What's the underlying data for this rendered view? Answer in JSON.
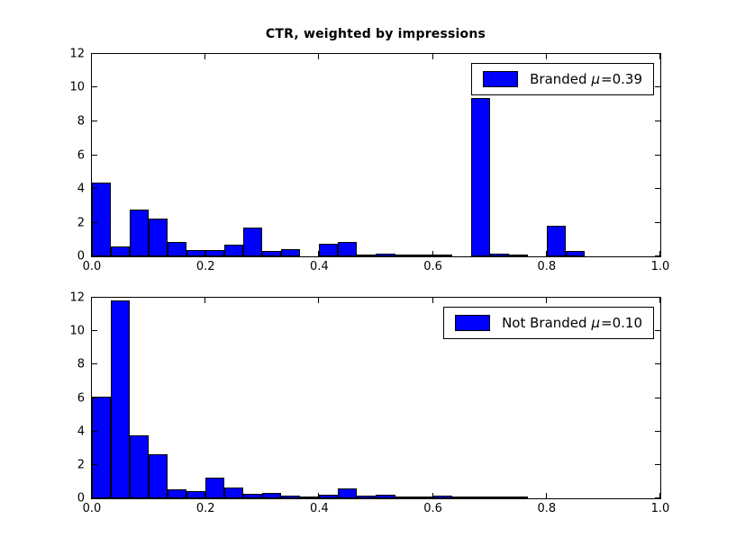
{
  "title": "CTR, weighted by impressions",
  "colors": {
    "bar_fill": "#0000ff",
    "bar_edge": "#000000",
    "axis": "#000000",
    "legend_background": "#ffffff",
    "legend_border": "#000000",
    "figure_background": "#ffffff"
  },
  "chart_data": [
    {
      "type": "bar",
      "subtype": "histogram",
      "series_name": "Branded",
      "legend": {
        "name": "Branded",
        "mu": "μ",
        "value": "=0.39",
        "position": "upper right"
      },
      "x_start": 0.0,
      "bin_width": 0.033333,
      "bins": 30,
      "values": [
        4.4,
        0.6,
        2.75,
        2.25,
        0.85,
        0.4,
        0.4,
        0.7,
        1.7,
        0.3,
        0.45,
        0,
        0.75,
        0.85,
        0.12,
        0.15,
        0.07,
        0.03,
        0.05,
        0,
        9.4,
        0.15,
        0.07,
        0,
        1.8,
        0.3,
        0,
        0,
        0,
        0
      ],
      "xlim": [
        0.0,
        1.0
      ],
      "ylim": [
        0,
        12
      ],
      "xtick_labels": [
        "0.0",
        "0.2",
        "0.4",
        "0.6",
        "0.8",
        "1.0"
      ],
      "ytick_labels": [
        "0",
        "2",
        "4",
        "6",
        "8",
        "10",
        "12"
      ],
      "grid": false
    },
    {
      "type": "bar",
      "subtype": "histogram",
      "series_name": "Not Branded",
      "legend": {
        "name": "Not Branded",
        "mu": "μ",
        "value": "=0.10",
        "position": "upper right"
      },
      "x_start": 0.0,
      "bin_width": 0.033333,
      "bins": 30,
      "values": [
        6.1,
        11.85,
        3.75,
        2.65,
        0.55,
        0.45,
        1.25,
        0.65,
        0.25,
        0.35,
        0.15,
        0.05,
        0.2,
        0.6,
        0.15,
        0.2,
        0.07,
        0.02,
        0.15,
        0.02,
        0.05,
        0.05,
        0.05,
        0,
        0,
        0,
        0,
        0,
        0,
        0
      ],
      "xlim": [
        0.0,
        1.0
      ],
      "ylim": [
        0,
        12
      ],
      "xtick_labels": [
        "0.0",
        "0.2",
        "0.4",
        "0.6",
        "0.8",
        "1.0"
      ],
      "ytick_labels": [
        "0",
        "2",
        "4",
        "6",
        "8",
        "10",
        "12"
      ],
      "grid": false
    }
  ]
}
